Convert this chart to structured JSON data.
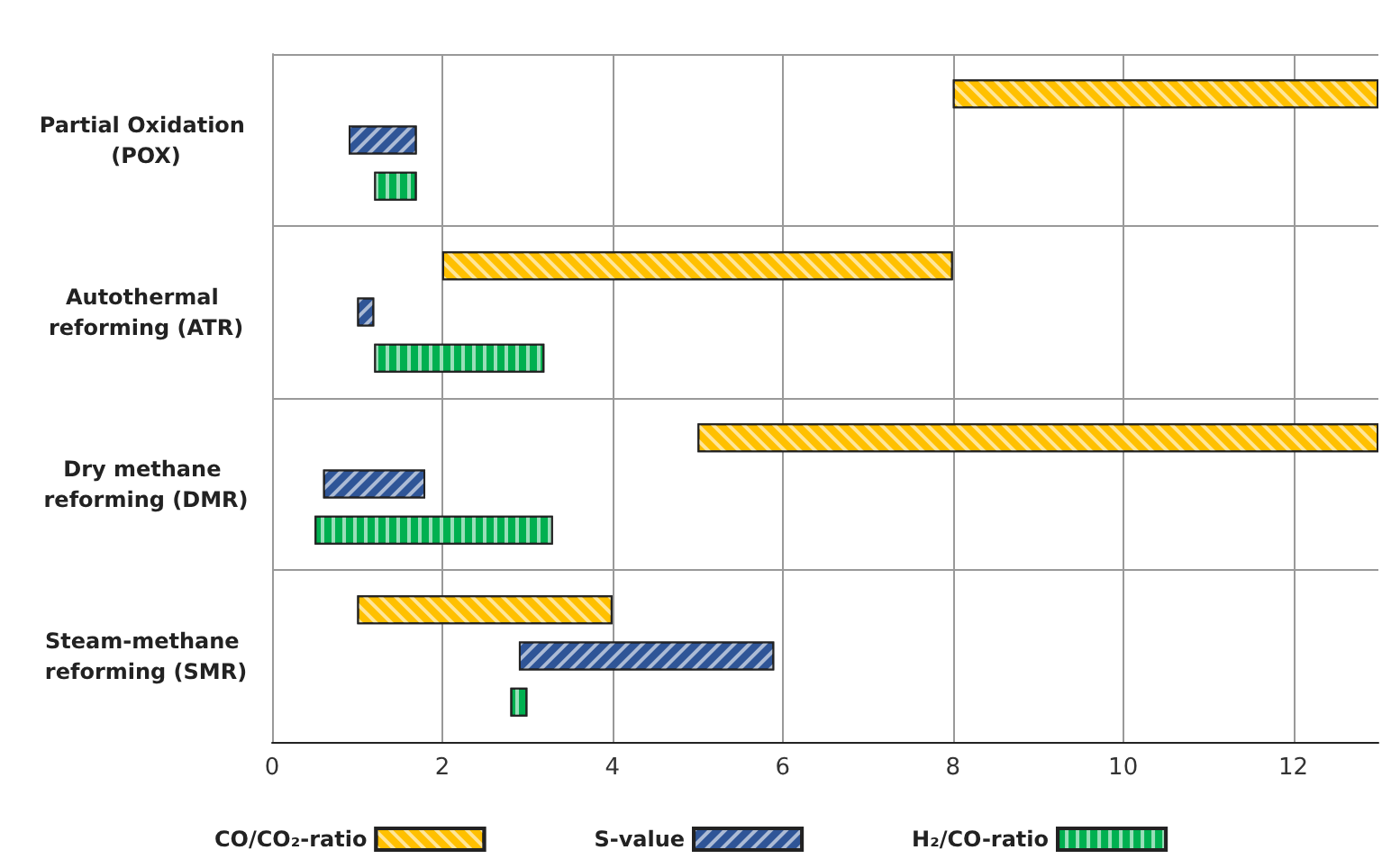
{
  "chart_data": {
    "type": "bar",
    "orientation": "horizontal",
    "categories": [
      "Partial Oxidation (POX)",
      "Autothermal reforming (ATR)",
      "Dry methane reforming (DMR)",
      "Steam-methane reforming (SMR)"
    ],
    "series": [
      {
        "name": "CO/CO₂-ratio",
        "color": "#ffc000",
        "base": [
          8,
          2,
          5,
          1
        ],
        "values": [
          5,
          6,
          8,
          3
        ]
      },
      {
        "name": "S-value",
        "color": "#2f5597",
        "base": [
          0.9,
          1.0,
          0.6,
          2.9
        ],
        "values": [
          0.8,
          0.2,
          1.2,
          3.0
        ]
      },
      {
        "name": "H₂/CO-ratio",
        "color": "#00b050",
        "base": [
          1.2,
          1.2,
          0.5,
          2.8
        ],
        "values": [
          0.5,
          2.0,
          2.8,
          0.2
        ]
      }
    ],
    "xlim": [
      0,
      13
    ],
    "xticks": [
      0,
      2,
      4,
      6,
      8,
      10,
      12
    ],
    "grid": true,
    "legend": "bottom"
  }
}
